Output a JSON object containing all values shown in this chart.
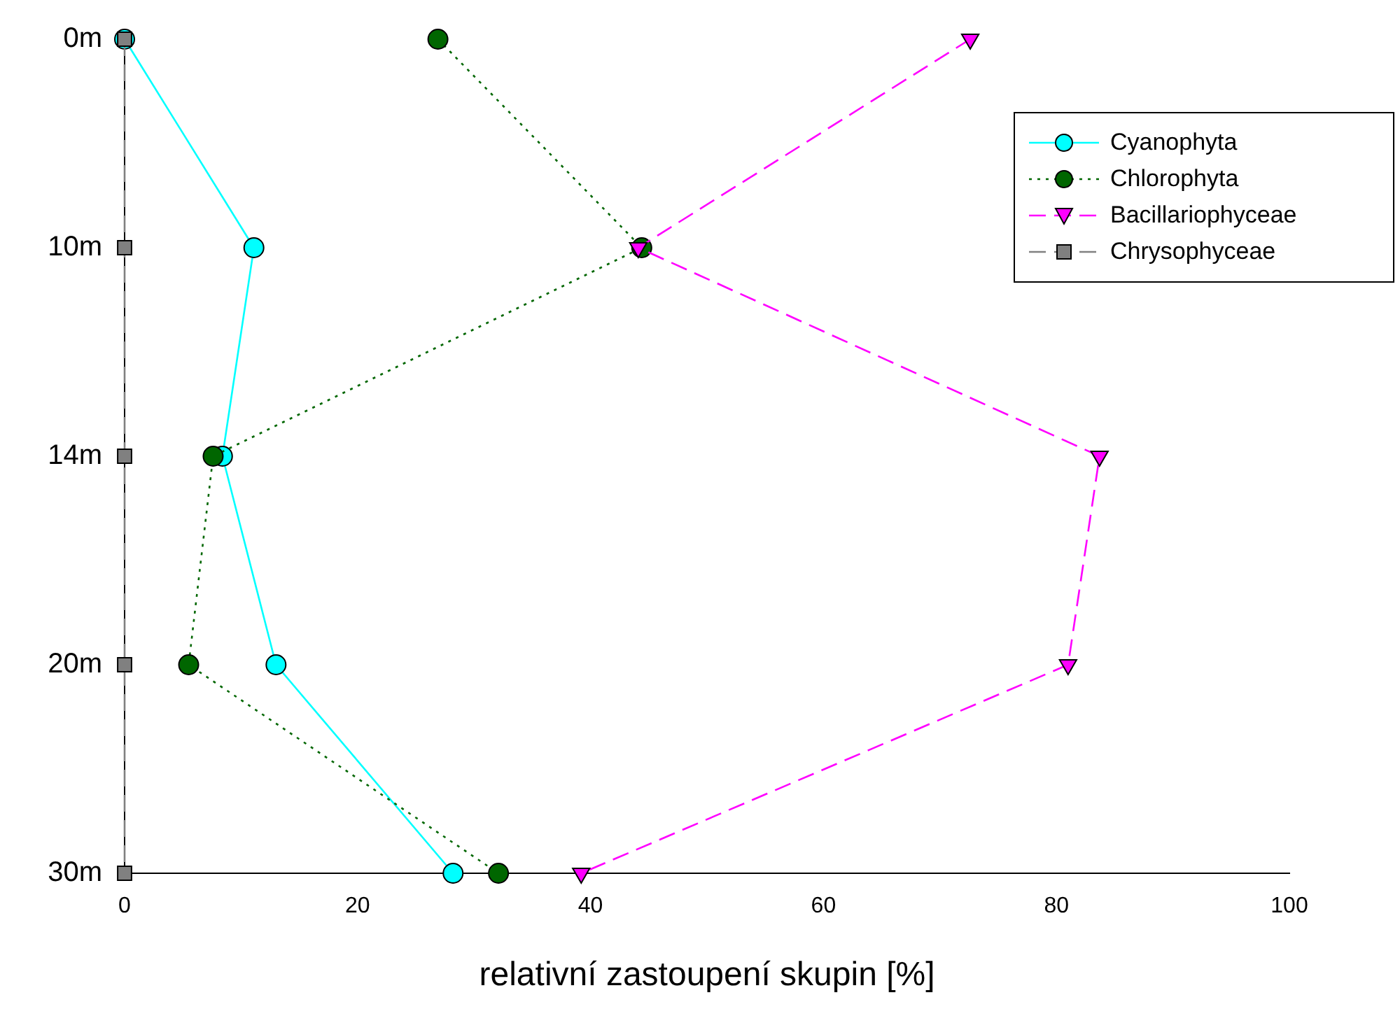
{
  "chart_data": {
    "type": "line",
    "orientation": "horizontal",
    "xlabel": "relativní zastoupení skupin [%]",
    "categories": [
      "0m",
      "10m",
      "14m",
      "20m",
      "30m"
    ],
    "xlim": [
      0,
      100
    ],
    "xticks": [
      0,
      20,
      40,
      60,
      80,
      100
    ],
    "grid": false,
    "legend": "top right",
    "series": [
      {
        "name": "Cyanophyta",
        "color": "#00ffff",
        "marker": "circle",
        "line_style": "solid",
        "values": [
          0,
          11.1,
          8.4,
          13.0,
          28.2
        ]
      },
      {
        "name": "Chlorophyta",
        "color": "#006600",
        "marker": "circle",
        "line_style": "dotted",
        "values": [
          26.9,
          44.4,
          7.6,
          5.5,
          32.1
        ]
      },
      {
        "name": "Bacillariophyceae",
        "color": "#ff00ff",
        "marker": "triangle",
        "line_style": "dashed",
        "values": [
          72.6,
          44.1,
          83.7,
          81.0,
          39.2
        ]
      },
      {
        "name": "Chrysophyceae",
        "color": "#808080",
        "marker": "square",
        "line_style": "dashed",
        "values": [
          0,
          0,
          0,
          0,
          0
        ]
      }
    ]
  }
}
